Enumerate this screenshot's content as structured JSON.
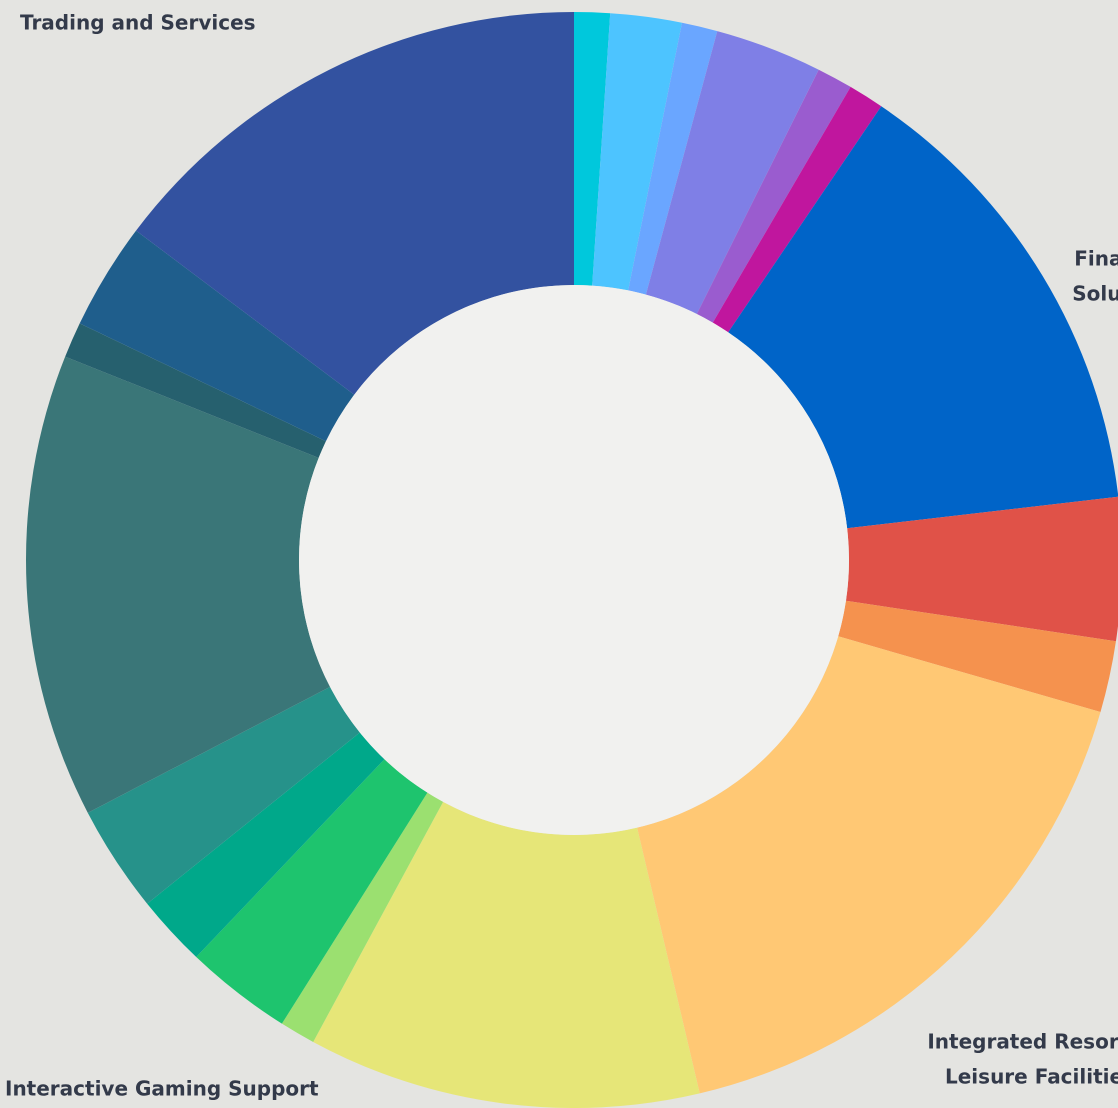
{
  "chart_data": {
    "type": "donut",
    "categories": [
      null,
      null,
      null,
      null,
      null,
      null,
      [
        "Financial",
        "Solutions"
      ],
      null,
      null,
      [
        "Integrated Resort &",
        "Leisure Facilities"
      ],
      [
        "Interactive Gaming Support"
      ],
      null,
      null,
      null,
      null,
      null,
      null,
      null,
      [
        "Trading and Services"
      ]
    ],
    "values": [
      1,
      2,
      1,
      3,
      1,
      1,
      13,
      4,
      2,
      16,
      11,
      1,
      3,
      2,
      3,
      13,
      1,
      3,
      14
    ],
    "colors": [
      "#00c8dc",
      "#4dc4ff",
      "#6aa6ff",
      "#7f7fe6",
      "#9a5ccf",
      "#c0169e",
      "#0064c8",
      "#e05248",
      "#f5924e",
      "#ffc874",
      "#e6e678",
      "#9be070",
      "#1ec46e",
      "#00a88a",
      "#26928a",
      "#3a7678",
      "#26606e",
      "#1f5e8c",
      "#3352a0"
    ]
  }
}
